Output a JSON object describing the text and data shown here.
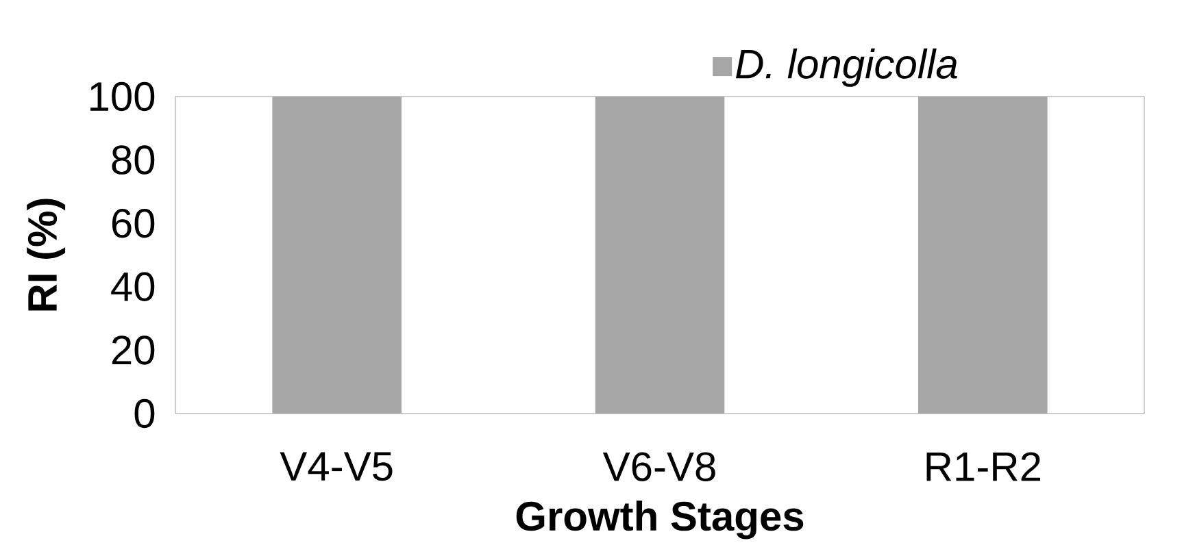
{
  "chart_data": {
    "type": "bar",
    "xlabel": "Growth Stages",
    "ylabel": "RI (%)",
    "categories": [
      "V4-V5",
      "V6-V8",
      "R1-R2"
    ],
    "series": [
      {
        "name": "D. longicolla",
        "color": "#a6a6a6",
        "values": [
          100,
          100,
          100
        ]
      }
    ],
    "ylim": [
      0,
      100
    ],
    "yticks": [
      0,
      20,
      40,
      60,
      80,
      100
    ],
    "legend": "top right"
  }
}
